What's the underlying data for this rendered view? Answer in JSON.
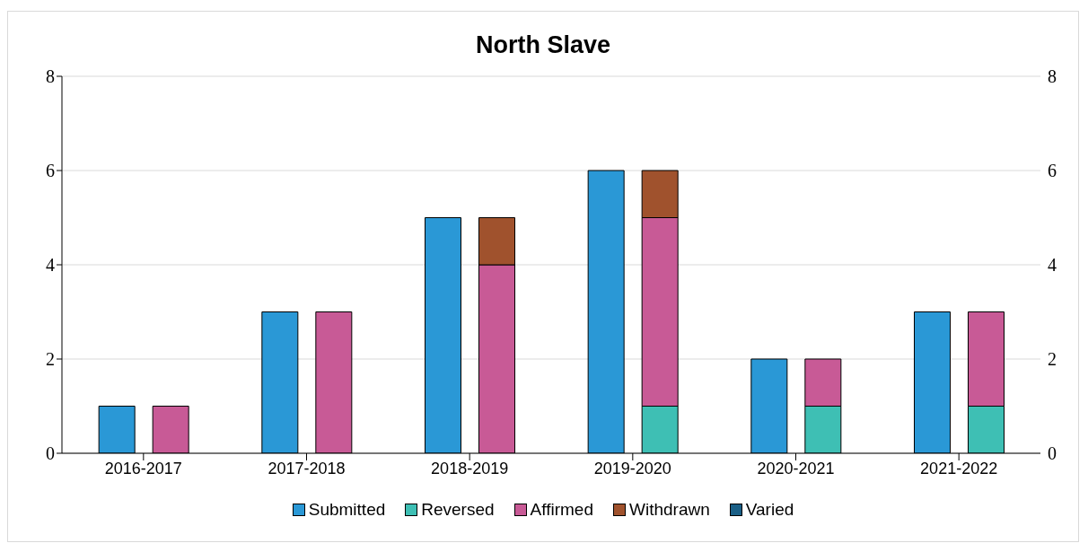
{
  "chart_data": {
    "type": "bar",
    "title": "North Slave",
    "categories": [
      "2016-2017",
      "2017-2018",
      "2018-2019",
      "2019-2020",
      "2020-2021",
      "2021-2022"
    ],
    "stacked": true,
    "series": [
      {
        "name": "Submitted",
        "color": "#2a98d6",
        "axis": "y2",
        "values": [
          1,
          3,
          5,
          6,
          2,
          3
        ]
      },
      {
        "name": "Reversed",
        "color": "#3ebfb4",
        "values": [
          0,
          0,
          0,
          1,
          1,
          1
        ]
      },
      {
        "name": "Affirmed",
        "color": "#c85a96",
        "values": [
          1,
          3,
          4,
          4,
          1,
          2
        ]
      },
      {
        "name": "Withdrawn",
        "color": "#a0522d",
        "values": [
          0,
          0,
          1,
          1,
          0,
          0
        ]
      },
      {
        "name": "Varied",
        "color": "#1a5f86",
        "values": [
          0,
          0,
          0,
          0,
          0,
          0
        ]
      }
    ],
    "ylim": [
      0,
      8
    ],
    "yticks": [
      0,
      2,
      4,
      6,
      8
    ],
    "y2lim": [
      0,
      8
    ],
    "y2ticks": [
      0,
      2,
      4,
      6,
      8
    ],
    "grid": "y",
    "legend": "bottom"
  }
}
